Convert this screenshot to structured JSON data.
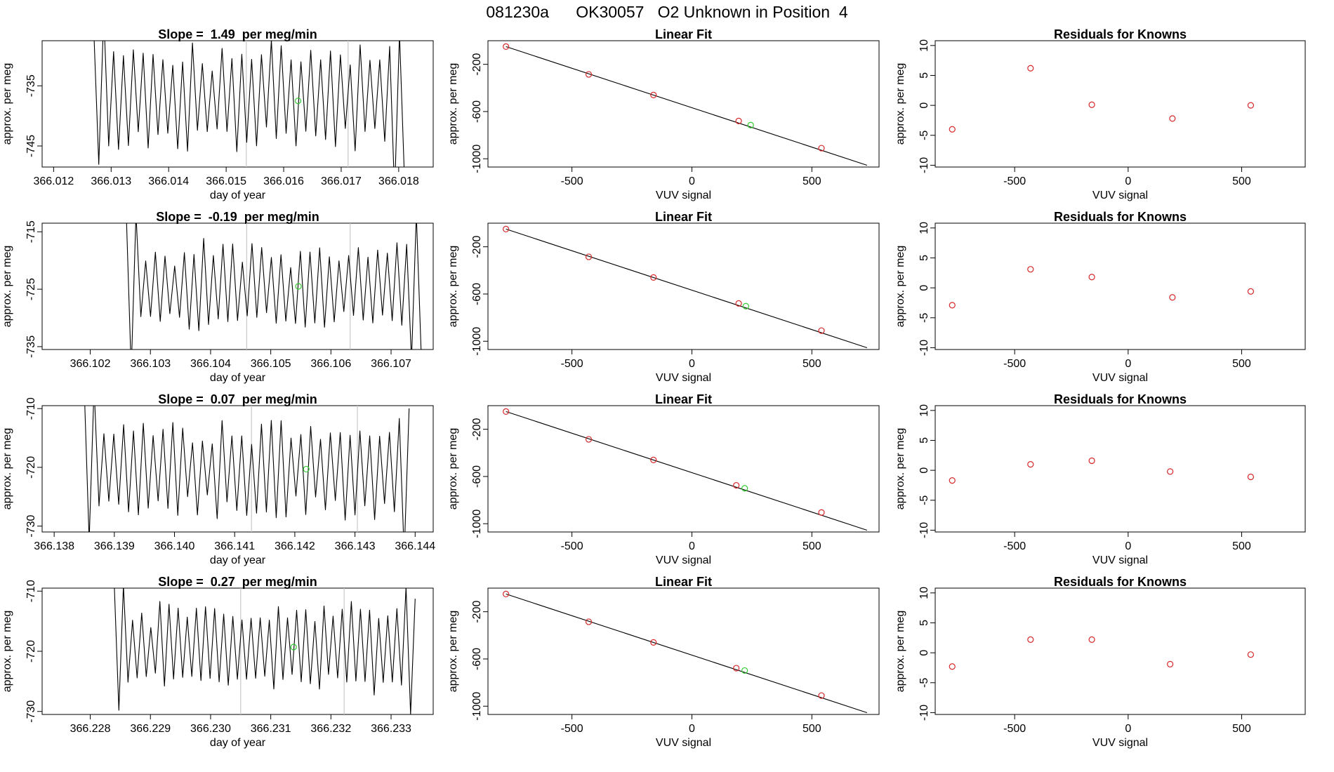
{
  "header": {
    "title": "081230a      OK30057   O2 Unknown in Position  4"
  },
  "colors": {
    "known": "#d62728",
    "unknown": "#33cc33",
    "trace": "#000000",
    "marker_line": "#c8c8c8",
    "fit_line": "#000000"
  },
  "chart_data": [
    {
      "type": "line",
      "title": "Slope =  1.49  per meg/min",
      "xlabel": "day of year",
      "ylabel": "approx. per meg",
      "xlim": [
        366.0118,
        366.0186
      ],
      "ylim": [
        -748.5,
        -727.5
      ],
      "xticks": [
        366.012,
        366.013,
        366.014,
        366.015,
        366.016,
        366.017,
        366.018
      ],
      "xtick_decimals": 3,
      "yticks": [
        -745,
        -735
      ],
      "trace": {
        "start": 366.0127,
        "end": 366.0181,
        "center": -737,
        "amp": 7.5,
        "cycles": 31.5,
        "seed": 3
      },
      "vlines": [
        366.01535,
        366.01712
      ],
      "unknown_point": {
        "x": 366.01625,
        "y": -737.5
      }
    },
    {
      "type": "scatter",
      "title": "Linear Fit",
      "xlabel": "VUV signal",
      "ylabel": "approx. per meg",
      "xlim": [
        -850,
        780
      ],
      "ylim": [
        -1070,
        0
      ],
      "xticks": [
        -500,
        0,
        500
      ],
      "yticks": [
        -200,
        -600,
        -1000
      ],
      "known_points": [
        {
          "x": -775,
          "y": -50
        },
        {
          "x": -430,
          "y": -285
        },
        {
          "x": -160,
          "y": -460
        },
        {
          "x": 195,
          "y": -680
        },
        {
          "x": 540,
          "y": -910
        }
      ],
      "unknown_point": {
        "x": 245,
        "y": -715
      },
      "fit_line": {
        "x1": -775,
        "y1": -50,
        "x2": 730,
        "y2": -1055
      }
    },
    {
      "type": "scatter",
      "title": "Residuals for Knowns",
      "xlabel": "VUV signal",
      "ylabel": "approx. per meg",
      "xlim": [
        -850,
        780
      ],
      "ylim": [
        -10.3,
        10.8
      ],
      "xticks": [
        -500,
        0,
        500
      ],
      "yticks": [
        10,
        5,
        0,
        -5,
        -10
      ],
      "points": [
        {
          "x": -775,
          "y": -4.0
        },
        {
          "x": -430,
          "y": 6.2
        },
        {
          "x": -160,
          "y": 0.1
        },
        {
          "x": 195,
          "y": -2.2
        },
        {
          "x": 540,
          "y": 0.0
        }
      ]
    },
    {
      "type": "line",
      "title": "Slope =  -0.19  per meg/min",
      "xlabel": "day of year",
      "ylabel": "approx. per meg",
      "xlim": [
        366.1012,
        366.1077
      ],
      "ylim": [
        -735.5,
        -713.5
      ],
      "xticks": [
        366.102,
        366.103,
        366.104,
        366.105,
        366.106,
        366.107
      ],
      "xtick_decimals": 3,
      "yticks": [
        -715,
        -725,
        -735
      ],
      "trace": {
        "start": 366.1026,
        "end": 366.1075,
        "center": -724.5,
        "amp": 6.5,
        "cycles": 30.5,
        "seed": 7
      },
      "vlines": [
        366.1046,
        366.10632
      ],
      "unknown_point": {
        "x": 366.10546,
        "y": -724.5
      }
    },
    {
      "type": "scatter",
      "title": "Linear Fit",
      "xlabel": "VUV signal",
      "ylabel": "approx. per meg",
      "xlim": [
        -850,
        780
      ],
      "ylim": [
        -1070,
        0
      ],
      "xticks": [
        -500,
        0,
        500
      ],
      "yticks": [
        -200,
        -600,
        -1000
      ],
      "known_points": [
        {
          "x": -775,
          "y": -50
        },
        {
          "x": -430,
          "y": -285
        },
        {
          "x": -160,
          "y": -460
        },
        {
          "x": 195,
          "y": -680
        },
        {
          "x": 540,
          "y": -910
        }
      ],
      "unknown_point": {
        "x": 225,
        "y": -703
      },
      "fit_line": {
        "x1": -775,
        "y1": -50,
        "x2": 730,
        "y2": -1055
      }
    },
    {
      "type": "scatter",
      "title": "Residuals for Knowns",
      "xlabel": "VUV signal",
      "ylabel": "approx. per meg",
      "xlim": [
        -850,
        780
      ],
      "ylim": [
        -10.3,
        10.8
      ],
      "xticks": [
        -500,
        0,
        500
      ],
      "yticks": [
        10,
        5,
        0,
        -5,
        -10
      ],
      "points": [
        {
          "x": -775,
          "y": -2.9
        },
        {
          "x": -430,
          "y": 3.1
        },
        {
          "x": -160,
          "y": 1.8
        },
        {
          "x": 195,
          "y": -1.6
        },
        {
          "x": 540,
          "y": -0.6
        }
      ]
    },
    {
      "type": "line",
      "title": "Slope =  0.07  per meg/min",
      "xlabel": "day of year",
      "ylabel": "approx. per meg",
      "xlim": [
        366.1378,
        366.1443
      ],
      "ylim": [
        -731,
        -709.5
      ],
      "xticks": [
        366.138,
        366.139,
        366.14,
        366.141,
        366.142,
        366.143,
        366.144
      ],
      "xtick_decimals": 3,
      "yticks": [
        -710,
        -720,
        -730
      ],
      "trace": {
        "start": 366.1385,
        "end": 366.1439,
        "center": -720.5,
        "amp": 7.0,
        "cycles": 33,
        "seed": 11
      },
      "vlines": [
        366.14128,
        366.14304
      ],
      "unknown_point": {
        "x": 366.14219,
        "y": -720.3
      }
    },
    {
      "type": "scatter",
      "title": "Linear Fit",
      "xlabel": "VUV signal",
      "ylabel": "approx. per meg",
      "xlim": [
        -850,
        780
      ],
      "ylim": [
        -1070,
        0
      ],
      "xticks": [
        -500,
        0,
        500
      ],
      "yticks": [
        -200,
        -600,
        -1000
      ],
      "known_points": [
        {
          "x": -775,
          "y": -50
        },
        {
          "x": -430,
          "y": -285
        },
        {
          "x": -160,
          "y": -460
        },
        {
          "x": 185,
          "y": -675
        },
        {
          "x": 540,
          "y": -905
        }
      ],
      "unknown_point": {
        "x": 220,
        "y": -700
      },
      "fit_line": {
        "x1": -775,
        "y1": -50,
        "x2": 730,
        "y2": -1055
      }
    },
    {
      "type": "scatter",
      "title": "Residuals for Knowns",
      "xlabel": "VUV signal",
      "ylabel": "approx. per meg",
      "xlim": [
        -850,
        780
      ],
      "ylim": [
        -10.3,
        10.8
      ],
      "xticks": [
        -500,
        0,
        500
      ],
      "yticks": [
        10,
        5,
        0,
        -5,
        -10
      ],
      "points": [
        {
          "x": -775,
          "y": -1.7
        },
        {
          "x": -430,
          "y": 1.0
        },
        {
          "x": -160,
          "y": 1.6
        },
        {
          "x": 185,
          "y": -0.2
        },
        {
          "x": 540,
          "y": -1.1
        }
      ]
    },
    {
      "type": "line",
      "title": "Slope =  0.27  per meg/min",
      "xlabel": "day of year",
      "ylabel": "approx. per meg",
      "xlim": [
        366.2272,
        366.2337
      ],
      "ylim": [
        -730.5,
        -709.5
      ],
      "xticks": [
        366.228,
        366.229,
        366.23,
        366.231,
        366.232,
        366.233
      ],
      "xtick_decimals": 3,
      "yticks": [
        -710,
        -720,
        -730
      ],
      "trace": {
        "start": 366.2284,
        "end": 366.2334,
        "center": -719.5,
        "amp": 6.0,
        "cycles": 33,
        "seed": 17
      },
      "vlines": [
        366.2305,
        366.23222
      ],
      "unknown_point": {
        "x": 366.23138,
        "y": -719.3
      }
    },
    {
      "type": "scatter",
      "title": "Linear Fit",
      "xlabel": "VUV signal",
      "ylabel": "approx. per meg",
      "xlim": [
        -850,
        780
      ],
      "ylim": [
        -1070,
        0
      ],
      "xticks": [
        -500,
        0,
        500
      ],
      "yticks": [
        -200,
        -600,
        -1000
      ],
      "known_points": [
        {
          "x": -775,
          "y": -50
        },
        {
          "x": -430,
          "y": -285
        },
        {
          "x": -160,
          "y": -460
        },
        {
          "x": 185,
          "y": -678
        },
        {
          "x": 540,
          "y": -910
        }
      ],
      "unknown_point": {
        "x": 220,
        "y": -698
      },
      "fit_line": {
        "x1": -775,
        "y1": -50,
        "x2": 730,
        "y2": -1055
      }
    },
    {
      "type": "scatter",
      "title": "Residuals for Knowns",
      "xlabel": "VUV signal",
      "ylabel": "approx. per meg",
      "xlim": [
        -850,
        780
      ],
      "ylim": [
        -10.3,
        10.8
      ],
      "xticks": [
        -500,
        0,
        500
      ],
      "yticks": [
        10,
        5,
        0,
        -5,
        -10
      ],
      "points": [
        {
          "x": -775,
          "y": -2.3
        },
        {
          "x": -430,
          "y": 2.2
        },
        {
          "x": -160,
          "y": 2.2
        },
        {
          "x": 185,
          "y": -1.9
        },
        {
          "x": 540,
          "y": -0.3
        }
      ]
    }
  ]
}
